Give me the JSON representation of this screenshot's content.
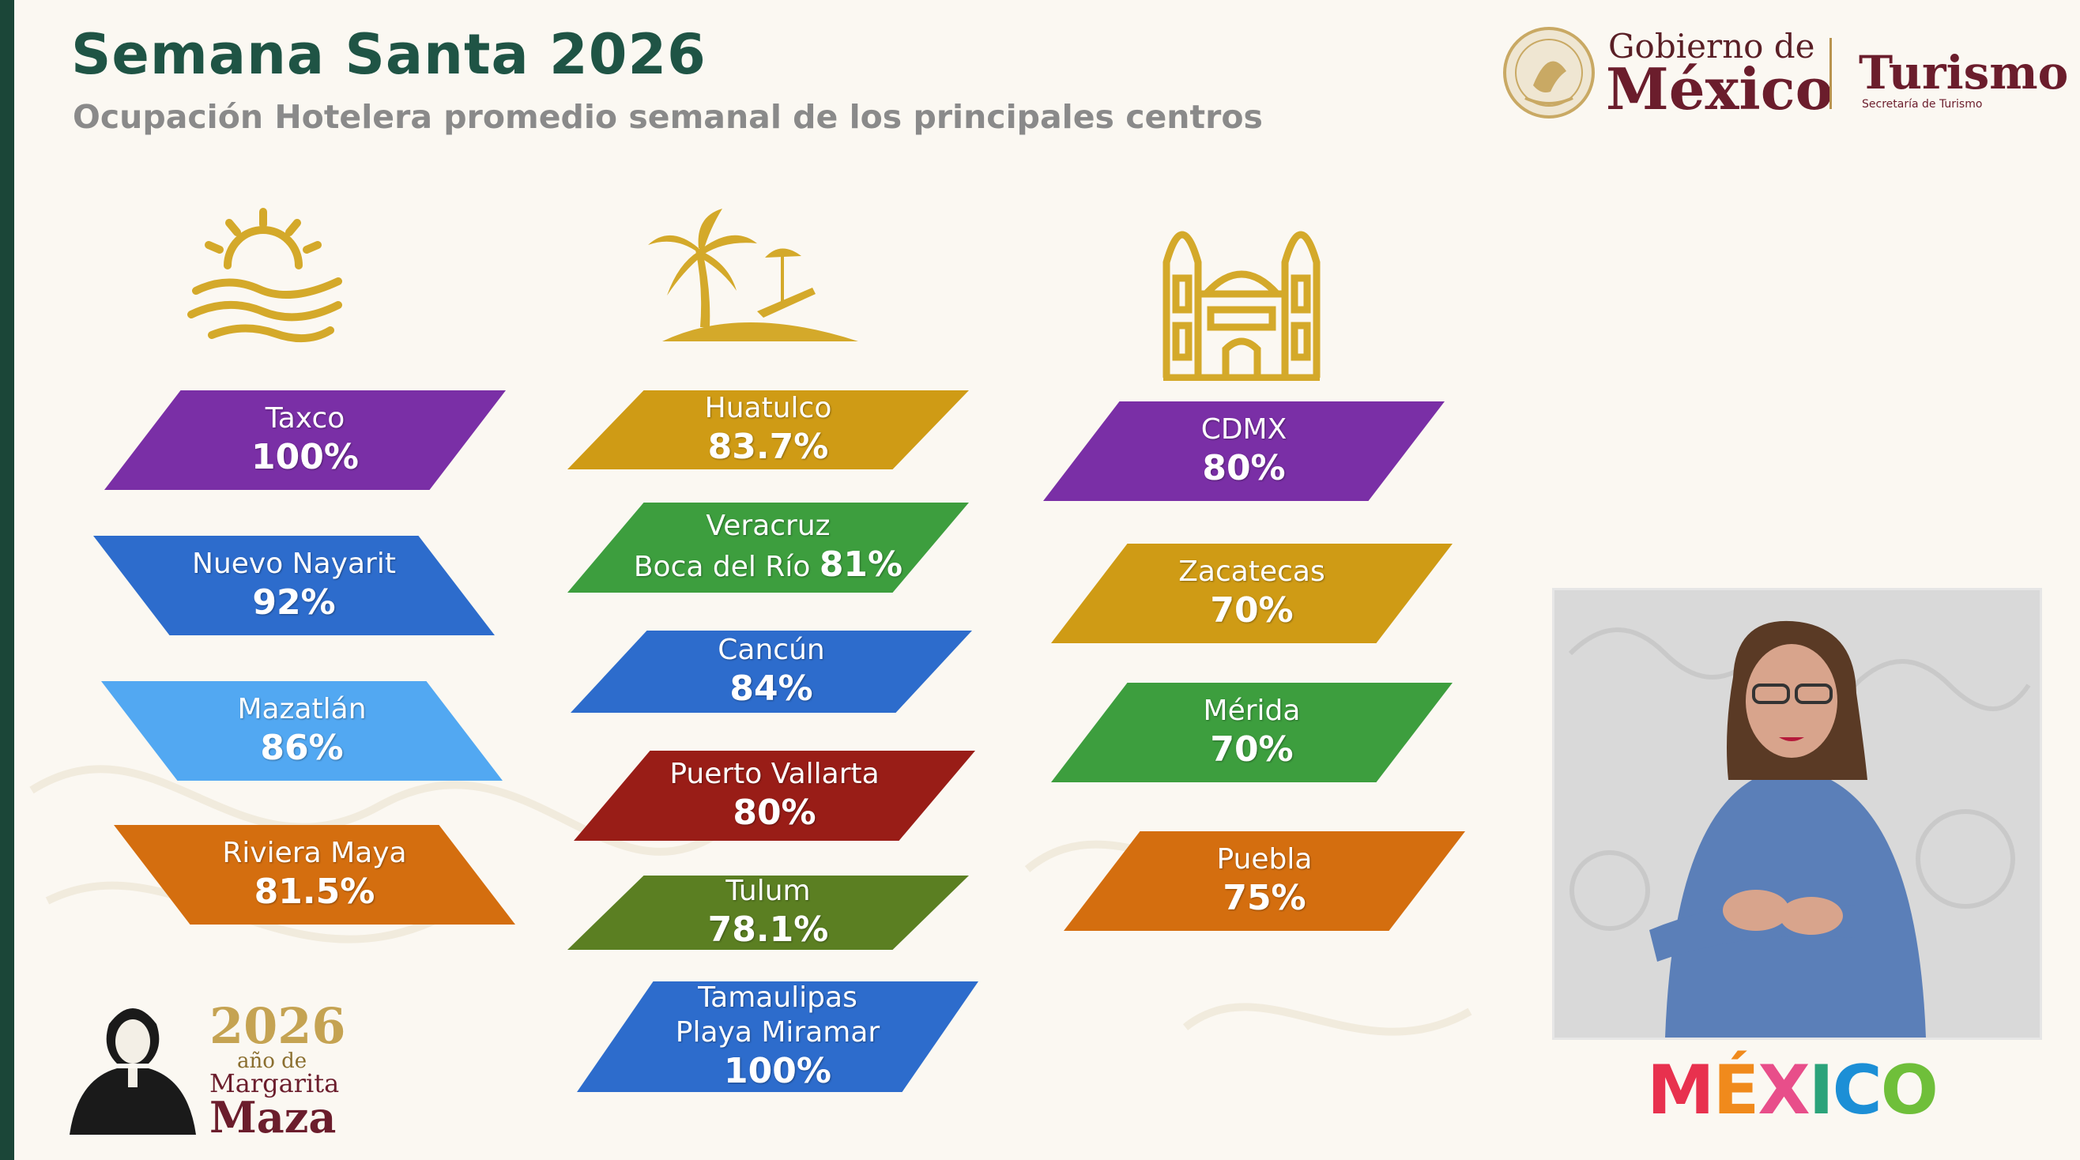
{
  "header": {
    "title": "Semana Santa 2026",
    "subtitle": "Ocupación Hotelera promedio semanal de los principales centros"
  },
  "logo": {
    "gobierno_line1": "Gobierno de",
    "gobierno_line2": "México",
    "turismo": "Turismo",
    "secretaria": "Secretaría de Turismo"
  },
  "columns": [
    {
      "icon": "sunset-waves-icon",
      "cards": [
        {
          "name": "Taxco",
          "value": "100%",
          "color": "#7a2fa6"
        },
        {
          "name": "Nuevo Nayarit",
          "value": "92%",
          "color": "#2d6ccc"
        },
        {
          "name": "Mazatlán",
          "value": "86%",
          "color": "#52a8f2"
        },
        {
          "name": "Riviera Maya",
          "value": "81.5%",
          "color": "#d46e0f"
        }
      ]
    },
    {
      "icon": "palm-beach-icon",
      "cards": [
        {
          "name": "Huatulco",
          "value": "83.7%",
          "color": "#cf9b15"
        },
        {
          "name": "Veracruz",
          "name2": "Boca del Río",
          "value": "81%",
          "color": "#3d9e3e"
        },
        {
          "name": "Cancún",
          "value": "84%",
          "color": "#2d6ccc"
        },
        {
          "name": "Puerto Vallarta",
          "value": "80%",
          "color": "#991d17"
        },
        {
          "name": "Tulum",
          "value": "78.1%",
          "color": "#5b7f22"
        },
        {
          "name": "Tamaulipas",
          "name2": "Playa Miramar",
          "value": "100%",
          "color": "#2d6ccc"
        }
      ]
    },
    {
      "icon": "cathedral-icon",
      "cards": [
        {
          "name": "CDMX",
          "value": "80%",
          "color": "#7a2fa6"
        },
        {
          "name": "Zacatecas",
          "value": "70%",
          "color": "#cf9b15"
        },
        {
          "name": "Mérida",
          "value": "70%",
          "color": "#3d9e3e"
        },
        {
          "name": "Puebla",
          "value": "75%",
          "color": "#d46e0f"
        }
      ]
    }
  ],
  "footer": {
    "year": "2026",
    "year_sub": "año de",
    "name1": "Margarita",
    "name2": "Maza",
    "brand": "MÉXICO"
  },
  "colors": {
    "title": "#1f5445",
    "gold": "#d4a92a",
    "wine": "#6b1d2c"
  }
}
